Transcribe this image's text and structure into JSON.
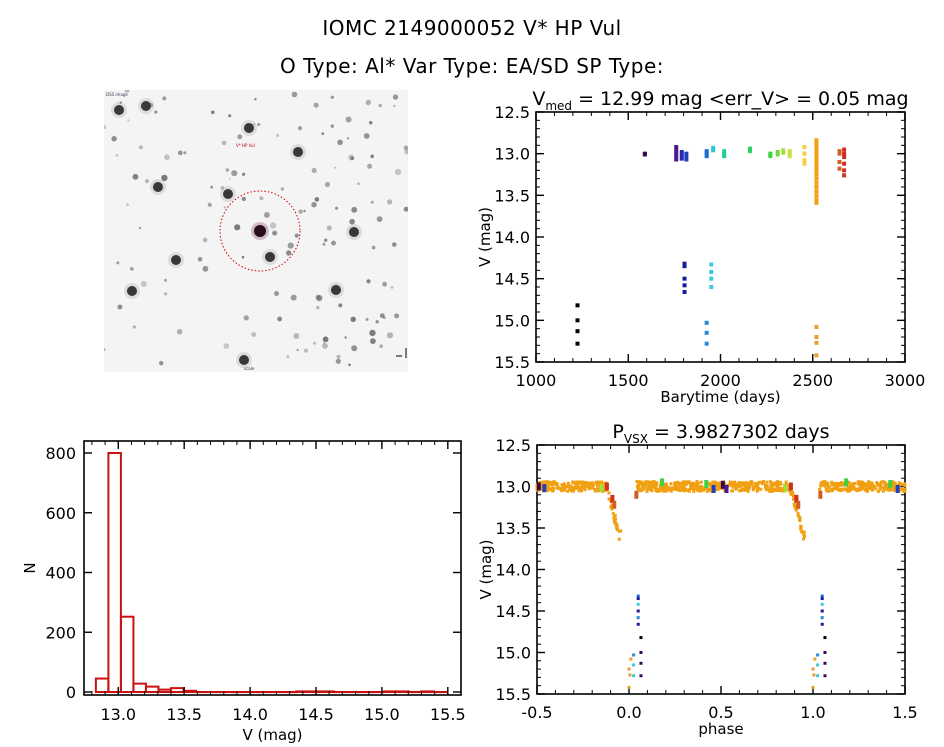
{
  "header": {
    "title_line1": "IOMC 2149000052    V* HP Vul",
    "title_line2": "O Type: Al*  Var Type: EA/SD  SP Type:"
  },
  "sky_image": {
    "description": "finder chart with target circled",
    "circle_color": "#cc0000",
    "labels": {
      "top_left": "DSS image",
      "target": "V* HP Vul",
      "bottom_left": "N",
      "bottom_center": "scale",
      "bottom_right": "E"
    }
  },
  "chart_data": [
    {
      "id": "light-curve",
      "type": "scatter",
      "title_main": "V",
      "title_sub": "med",
      "title_rest": " = 12.99 mag <err_V> = 0.05 mag",
      "xlabel": "Barytime (days)",
      "ylabel": "V (mag)",
      "xlim": [
        1000,
        3000
      ],
      "ylim": [
        12.5,
        15.5
      ],
      "y_inverted": true,
      "xticks": [
        "1000",
        "1500",
        "2000",
        "2500",
        "3000"
      ],
      "xtick_values": [
        1000,
        1500,
        2000,
        2500,
        3000
      ],
      "yticks": [
        "12.5",
        "13.0",
        "13.5",
        "14.0",
        "14.5",
        "15.0",
        "15.5"
      ],
      "ytick_values": [
        12.5,
        13.0,
        13.5,
        14.0,
        14.5,
        15.0,
        15.5
      ],
      "groups": [
        {
          "t": 1225,
          "color": "#000000",
          "mags": [
            14.82,
            15.0,
            15.13,
            15.28
          ]
        },
        {
          "t": 1590,
          "color": "#3a0a50",
          "mags": [
            13.0,
            13.01
          ]
        },
        {
          "t": 1760,
          "color": "#4b1a8a",
          "mags": [
            12.92,
            12.96,
            13.0,
            13.04,
            13.07
          ]
        },
        {
          "t": 1790,
          "color": "#2b2ab0",
          "mags": [
            12.98,
            13.02,
            13.06
          ]
        },
        {
          "t": 1815,
          "color": "#2040c0",
          "mags": [
            13.0,
            13.04,
            13.07
          ]
        },
        {
          "t": 1805,
          "color": "#1a1aa0",
          "mags": [
            14.32,
            14.35,
            14.5,
            14.58,
            14.66
          ]
        },
        {
          "t": 1925,
          "color": "#1e6ad0",
          "mags": [
            12.97,
            13.0,
            13.03
          ]
        },
        {
          "t": 1960,
          "color": "#30c8d8",
          "mags": [
            12.93,
            12.96
          ]
        },
        {
          "t": 2020,
          "color": "#20d090",
          "mags": [
            12.97,
            13.0,
            13.03
          ]
        },
        {
          "t": 1950,
          "color": "#40c8e0",
          "mags": [
            14.33,
            14.42,
            14.5,
            14.6
          ]
        },
        {
          "t": 1925,
          "color": "#2a8ad8",
          "mags": [
            15.03,
            15.15,
            15.28
          ]
        },
        {
          "t": 2160,
          "color": "#30d060",
          "mags": [
            12.94,
            12.97
          ]
        },
        {
          "t": 2270,
          "color": "#40d040",
          "mags": [
            13.0,
            13.03
          ]
        },
        {
          "t": 2310,
          "color": "#70d840",
          "mags": [
            12.98,
            13.01
          ]
        },
        {
          "t": 2340,
          "color": "#a0e040",
          "mags": [
            12.96,
            12.99
          ]
        },
        {
          "t": 2375,
          "color": "#c8e040",
          "mags": [
            12.97,
            13.0,
            13.03
          ]
        },
        {
          "t": 2455,
          "color": "#f0d040",
          "mags": [
            12.92,
            13.0,
            13.08,
            13.12
          ]
        },
        {
          "t": 2520,
          "color": "#f0a010",
          "mags": [
            12.84,
            12.88,
            12.92,
            12.96,
            13.0,
            13.04,
            13.08,
            13.12,
            13.16,
            13.2,
            13.25,
            13.3,
            13.35,
            13.4,
            13.45,
            13.5,
            13.55,
            13.59
          ]
        },
        {
          "t": 2520,
          "color": "#e8a030",
          "mags": [
            15.08,
            15.2,
            15.27,
            15.42
          ]
        },
        {
          "t": 2645,
          "color": "#d06020",
          "mags": [
            12.97,
            13.0,
            13.1,
            13.18
          ]
        },
        {
          "t": 2670,
          "color": "#d03020",
          "mags": [
            12.95,
            13.0,
            13.04,
            13.12,
            13.2,
            13.26
          ]
        }
      ]
    },
    {
      "id": "histogram",
      "type": "bar",
      "xlabel": "V (mag)",
      "ylabel": "N",
      "xlim": [
        12.74,
        15.6
      ],
      "ylim": [
        0,
        840
      ],
      "bar_color": "#cc1111",
      "xticks": [
        "13.0",
        "13.5",
        "14.0",
        "14.5",
        "15.0",
        "15.5"
      ],
      "xtick_values": [
        13.0,
        13.5,
        14.0,
        14.5,
        15.0,
        15.5
      ],
      "yticks": [
        "0",
        "200",
        "400",
        "600",
        "800"
      ],
      "ytick_values": [
        0,
        200,
        400,
        600,
        800
      ],
      "bin_width": 0.095,
      "bins": [
        {
          "x0": 12.83,
          "n": 45
        },
        {
          "x0": 12.925,
          "n": 800
        },
        {
          "x0": 13.02,
          "n": 252
        },
        {
          "x0": 13.115,
          "n": 28
        },
        {
          "x0": 13.21,
          "n": 18
        },
        {
          "x0": 13.305,
          "n": 8
        },
        {
          "x0": 13.4,
          "n": 13
        },
        {
          "x0": 13.495,
          "n": 4
        },
        {
          "x0": 13.59,
          "n": 0
        },
        {
          "x0": 13.685,
          "n": 0
        },
        {
          "x0": 13.78,
          "n": 0
        },
        {
          "x0": 13.875,
          "n": 0
        },
        {
          "x0": 13.97,
          "n": 0
        },
        {
          "x0": 14.065,
          "n": 0
        },
        {
          "x0": 14.16,
          "n": 0
        },
        {
          "x0": 14.255,
          "n": 0
        },
        {
          "x0": 14.35,
          "n": 2
        },
        {
          "x0": 14.445,
          "n": 2
        },
        {
          "x0": 14.54,
          "n": 2
        },
        {
          "x0": 14.635,
          "n": 0
        },
        {
          "x0": 14.73,
          "n": 0
        },
        {
          "x0": 14.825,
          "n": 0
        },
        {
          "x0": 14.92,
          "n": 0
        },
        {
          "x0": 15.015,
          "n": 2
        },
        {
          "x0": 15.11,
          "n": 2
        },
        {
          "x0": 15.205,
          "n": 0
        },
        {
          "x0": 15.3,
          "n": 2
        },
        {
          "x0": 15.395,
          "n": 0
        }
      ]
    },
    {
      "id": "phase-curve",
      "type": "scatter",
      "title_main": "P",
      "title_sub": "VSX",
      "title_rest": " = 3.9827302 days",
      "xlabel": "phase",
      "ylabel": "V (mag)",
      "xlim": [
        -0.5,
        1.5
      ],
      "ylim": [
        12.5,
        15.5
      ],
      "y_inverted": true,
      "period_days": 3.9827302,
      "xticks": [
        "-0.5",
        "0.0",
        "0.5",
        "1.0",
        "1.5"
      ],
      "xtick_values": [
        -0.5,
        0.0,
        0.5,
        1.0,
        1.5
      ],
      "yticks": [
        "12.5",
        "13.0",
        "13.5",
        "14.0",
        "14.5",
        "15.0",
        "15.5"
      ],
      "ytick_values": [
        12.5,
        13.0,
        13.5,
        14.0,
        14.5,
        15.0,
        15.5
      ],
      "out_of_eclipse_mag": 13.0,
      "primary_eclipse": {
        "phase_center": -0.05,
        "depth_mag": 13.6,
        "ingress_start": -0.13,
        "egress_end": 0.02
      },
      "faint_points": [
        {
          "phase": 0.05,
          "mag": 14.32,
          "color": "#1e6ad0"
        },
        {
          "phase": 0.05,
          "mag": 14.35,
          "color": "#1a1aa0"
        },
        {
          "phase": 0.05,
          "mag": 14.42,
          "color": "#40c8e0"
        },
        {
          "phase": 0.05,
          "mag": 14.5,
          "color": "#1a1aa0"
        },
        {
          "phase": 0.05,
          "mag": 14.58,
          "color": "#2a8ad8"
        },
        {
          "phase": 0.05,
          "mag": 14.66,
          "color": "#1a1aa0"
        },
        {
          "phase": 0.065,
          "mag": 14.82,
          "color": "#000000"
        },
        {
          "phase": 0.065,
          "mag": 15.0,
          "color": "#3a0a50"
        },
        {
          "phase": 0.065,
          "mag": 15.13,
          "color": "#3a0a50"
        },
        {
          "phase": 0.065,
          "mag": 15.28,
          "color": "#3a0a50"
        },
        {
          "phase": 0.025,
          "mag": 15.03,
          "color": "#2a8ad8"
        },
        {
          "phase": 0.025,
          "mag": 15.15,
          "color": "#40c8e0"
        },
        {
          "phase": 0.025,
          "mag": 15.28,
          "color": "#40c8e0"
        },
        {
          "phase": 0.01,
          "mag": 15.08,
          "color": "#e8a030"
        },
        {
          "phase": 0.0,
          "mag": 15.2,
          "color": "#e8a030"
        },
        {
          "phase": 0.005,
          "mag": 15.27,
          "color": "#e8a030"
        },
        {
          "phase": 0.0,
          "mag": 15.42,
          "color": "#e8a030"
        }
      ],
      "accent_points": [
        {
          "phase": -0.49,
          "mag": 13.0,
          "color": "#3a0a50"
        },
        {
          "phase": -0.46,
          "mag": 13.02,
          "color": "#2040c0"
        },
        {
          "phase": -0.15,
          "mag": 13.02,
          "color": "#a0e040"
        },
        {
          "phase": -0.12,
          "mag": 13.0,
          "color": "#d03020"
        },
        {
          "phase": -0.09,
          "mag": 13.15,
          "color": "#d03020"
        },
        {
          "phase": -0.08,
          "mag": 13.22,
          "color": "#d06020"
        },
        {
          "phase": 0.04,
          "mag": 13.1,
          "color": "#d06020"
        },
        {
          "phase": 0.18,
          "mag": 12.95,
          "color": "#40d040"
        },
        {
          "phase": 0.42,
          "mag": 12.97,
          "color": "#40d040"
        },
        {
          "phase": 0.46,
          "mag": 13.03,
          "color": "#2040c0"
        },
        {
          "phase": 0.51,
          "mag": 12.98,
          "color": "#3a0a50"
        },
        {
          "phase": 0.53,
          "mag": 13.03,
          "color": "#4b1a8a"
        },
        {
          "phase": 0.85,
          "mag": 13.02,
          "color": "#a0e040"
        },
        {
          "phase": 0.88,
          "mag": 13.0,
          "color": "#d03020"
        },
        {
          "phase": 0.91,
          "mag": 13.15,
          "color": "#d03020"
        },
        {
          "phase": 0.92,
          "mag": 13.22,
          "color": "#d06020"
        },
        {
          "phase": 1.04,
          "mag": 13.1,
          "color": "#d06020"
        },
        {
          "phase": 1.18,
          "mag": 12.95,
          "color": "#40d040"
        },
        {
          "phase": 1.42,
          "mag": 12.97,
          "color": "#40d040"
        },
        {
          "phase": 1.46,
          "mag": 13.03,
          "color": "#2040c0"
        }
      ],
      "main_color": "#f0a010"
    }
  ]
}
